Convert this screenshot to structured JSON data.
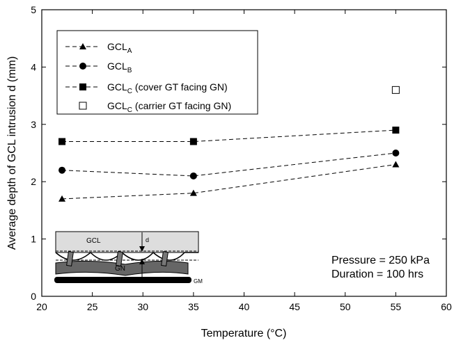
{
  "chart_data": {
    "type": "line",
    "x_label": "Temperature (°C)",
    "y_label": "Average depth of GCL intrusion d (mm)",
    "xlim": [
      20,
      60
    ],
    "xticks": [
      20,
      25,
      30,
      35,
      40,
      45,
      50,
      55,
      60
    ],
    "ylim": [
      0,
      5
    ],
    "yticks": [
      0,
      1,
      2,
      3,
      4,
      5
    ],
    "legend": "upper left",
    "series": [
      {
        "name": "GCL",
        "subscript": "A",
        "marker": "triangle",
        "linestyle": "dashed",
        "color": "#000000",
        "x": [
          22,
          35,
          55
        ],
        "values": [
          1.7,
          1.8,
          2.3
        ]
      },
      {
        "name": "GCL",
        "subscript": "B",
        "marker": "circle",
        "linestyle": "dashed",
        "color": "#000000",
        "x": [
          22,
          35,
          55
        ],
        "values": [
          2.2,
          2.1,
          2.5
        ]
      },
      {
        "name": "GCL",
        "subscript": "C",
        "suffix": " (cover GT facing GN)",
        "marker": "square",
        "linestyle": "dashed",
        "color": "#000000",
        "x": [
          22,
          35,
          55
        ],
        "values": [
          2.7,
          2.7,
          2.9
        ]
      },
      {
        "name": "GCL",
        "subscript": "C",
        "suffix": " (carrier GT facing GN)",
        "marker": "square-open",
        "linestyle": "none",
        "color": "#000000",
        "x": [
          55
        ],
        "values": [
          3.6
        ]
      }
    ],
    "annotations": [
      "Pressure = 250 kPa",
      "Duration = 100 hrs"
    ],
    "diagram_labels": [
      "GCL",
      "d",
      "GN",
      "GM"
    ]
  }
}
